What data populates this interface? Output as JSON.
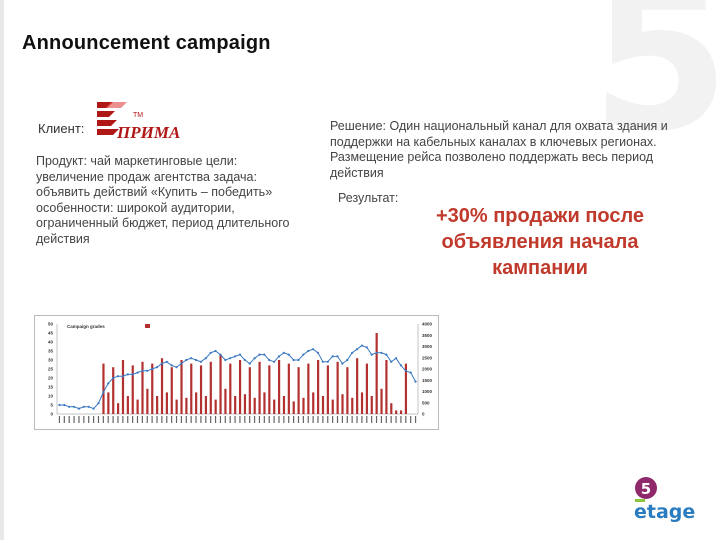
{
  "title": "Announcement campaign",
  "client_label": "Клиент:",
  "client_logo": {
    "text": "ПРИМА",
    "small_text": "ТМ",
    "color": "#b01818"
  },
  "left_text": [
    "Продукт: чай маркетинговые цели:",
    "увеличение продаж агентства задача:",
    "объявить действий «Купить – победить»",
    "особенности: широкой аудитории,",
    "ограниченный бюджет, период длительного",
    "действия"
  ],
  "solution_text": "Решение: Один национальный канал для охвата здания и поддержки на кабельных каналах в ключевых регионах. Размещение рейса позволено поддержать весь период действия",
  "result_label": "Результат:",
  "result_big": [
    "+30% продажи после",
    "объявления начала",
    "кампании"
  ],
  "background_numeral": "5",
  "brand_logo": {
    "badge": "5",
    "text": "etage",
    "badge_color": "#8e2a6b",
    "text_color": "#2a7cc0",
    "accent": "#8cc63f"
  },
  "chart_data": {
    "type": "bar",
    "legend_title": "Campaign grades",
    "left_ticks": [
      50,
      45,
      40,
      35,
      30,
      25,
      20,
      15,
      10,
      5,
      0
    ],
    "right_ticks": [
      4000,
      3500,
      3000,
      2500,
      2000,
      1500,
      1000,
      500,
      0
    ],
    "ylim_left": [
      0,
      50
    ],
    "ylim_right": [
      0,
      4000
    ],
    "bars": [
      0,
      0,
      0,
      0,
      0,
      0,
      0,
      0,
      0,
      28,
      12,
      26,
      6,
      30,
      10,
      27,
      8,
      29,
      14,
      28,
      10,
      31,
      12,
      26,
      8,
      30,
      9,
      28,
      12,
      27,
      10,
      29,
      8,
      33,
      14,
      28,
      10,
      30,
      11,
      26,
      9,
      29,
      12,
      27,
      8,
      30,
      10,
      28,
      7,
      26,
      9,
      28,
      12,
      30,
      10,
      27,
      8,
      29,
      11,
      26,
      9,
      31,
      12,
      28,
      10,
      45,
      14,
      30,
      6,
      2,
      2,
      28,
      0,
      0
    ],
    "line": [
      5,
      5,
      4,
      4,
      3,
      4,
      4,
      3,
      6,
      12,
      17,
      20,
      21,
      21,
      22,
      22,
      23,
      24,
      24,
      25,
      26,
      28,
      29,
      27,
      26,
      28,
      30,
      31,
      30,
      29,
      31,
      34,
      35,
      33,
      30,
      31,
      32,
      33,
      30,
      28,
      31,
      33,
      33,
      30,
      29,
      32,
      34,
      33,
      30,
      30,
      33,
      35,
      36,
      34,
      29,
      29,
      32,
      32,
      28,
      30,
      34,
      36,
      38,
      37,
      33,
      34,
      34,
      33,
      29,
      31,
      27,
      24,
      23,
      18
    ],
    "bar_color": "#b33030",
    "line_color": "#3a78c2"
  }
}
